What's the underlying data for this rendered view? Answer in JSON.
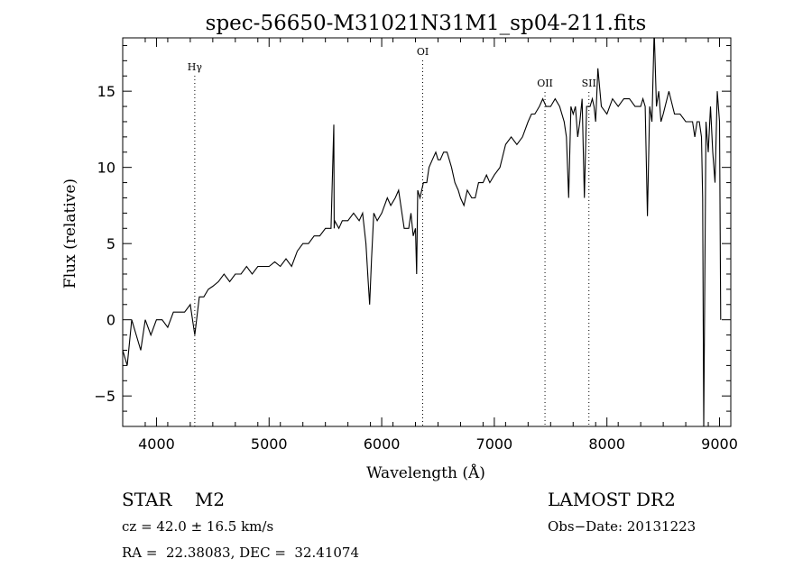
{
  "chart_data": {
    "type": "line",
    "title": "spec-56650-M31021N31M1_sp04-211.fits",
    "xlabel": "Wavelength (Å)",
    "ylabel": "Flux (relative)",
    "xlim": [
      3700,
      9100
    ],
    "ylim": [
      -7,
      18.5
    ],
    "xticks": [
      4000,
      5000,
      6000,
      7000,
      8000,
      9000
    ],
    "yticks": [
      -5,
      0,
      5,
      10,
      15
    ],
    "grid": false,
    "lines": [
      {
        "label": "Hγ",
        "x": 4340
      },
      {
        "label": "OI",
        "x": 6364
      },
      {
        "label": "OII",
        "x": 7450
      },
      {
        "label": "SII",
        "x": 7840
      }
    ],
    "series": [
      {
        "x": [
          3700,
          3740,
          3780,
          3820,
          3860,
          3900,
          3950,
          4000,
          4050,
          4100,
          4150,
          4200,
          4250,
          4300,
          4340,
          4380,
          4420,
          4460,
          4500,
          4550,
          4600,
          4650,
          4700,
          4750,
          4800,
          4850,
          4900,
          4950,
          5000,
          5050,
          5100,
          5150,
          5200,
          5250,
          5300,
          5350,
          5400,
          5450,
          5500,
          5550,
          5575,
          5578,
          5582,
          5620,
          5650,
          5700,
          5750,
          5800,
          5830,
          5860,
          5880,
          5893,
          5910,
          5930,
          5960,
          6000,
          6050,
          6080,
          6120,
          6150,
          6180,
          6200,
          6240,
          6260,
          6280,
          6300,
          6310,
          6320,
          6340,
          6370,
          6400,
          6420,
          6450,
          6480,
          6500,
          6520,
          6550,
          6580,
          6600,
          6620,
          6650,
          6680,
          6700,
          6730,
          6760,
          6800,
          6830,
          6860,
          6900,
          6930,
          6960,
          7000,
          7050,
          7100,
          7150,
          7200,
          7250,
          7300,
          7330,
          7360,
          7400,
          7430,
          7460,
          7500,
          7540,
          7580,
          7620,
          7640,
          7660,
          7680,
          7700,
          7720,
          7740,
          7760,
          7780,
          7800,
          7820,
          7850,
          7870,
          7885,
          7900,
          7920,
          7950,
          8000,
          8050,
          8100,
          8150,
          8200,
          8250,
          8300,
          8320,
          8340,
          8360,
          8380,
          8400,
          8420,
          8440,
          8460,
          8480,
          8500,
          8550,
          8600,
          8650,
          8700,
          8740,
          8760,
          8780,
          8800,
          8820,
          8840,
          8850,
          8860,
          8880,
          8900,
          8920,
          8940,
          8960,
          8980,
          9000,
          9010
        ],
        "y": [
          -2,
          -3,
          0,
          -1,
          -2,
          0,
          -1,
          0,
          0,
          -0.5,
          0.5,
          0.5,
          0.5,
          1,
          -1,
          1.5,
          1.5,
          2,
          2.2,
          2.5,
          3,
          2.5,
          3,
          3,
          3.5,
          3,
          3.5,
          3.5,
          3.5,
          3.8,
          3.5,
          4,
          3.5,
          4.5,
          5,
          5,
          5.5,
          5.5,
          6,
          6,
          12.8,
          6,
          6.5,
          6,
          6.5,
          6.5,
          7,
          6.5,
          7,
          5,
          2.5,
          1,
          4,
          7,
          6.5,
          7,
          8,
          7.5,
          8,
          8.5,
          7,
          6,
          6,
          7,
          5.5,
          6,
          3,
          8.5,
          8,
          9,
          9,
          10,
          10.5,
          11,
          10.5,
          10.5,
          11,
          11,
          10.5,
          10,
          9,
          8.5,
          8,
          7.5,
          8.5,
          8,
          8,
          9,
          9,
          9.5,
          9,
          9.5,
          10,
          11.5,
          12,
          11.5,
          12,
          13,
          13.5,
          13.5,
          14,
          14.5,
          14,
          14,
          14.5,
          14,
          13,
          12,
          8,
          14,
          13.5,
          14,
          12,
          13,
          14.5,
          8,
          14,
          14,
          14.5,
          14,
          13,
          16.5,
          14,
          13.5,
          14.5,
          14,
          14.5,
          14.5,
          14,
          14,
          14.5,
          14,
          6.8,
          14,
          13,
          19,
          14,
          15,
          13,
          13.5,
          15,
          13.5,
          13.5,
          13,
          13,
          13,
          12,
          13,
          13,
          12,
          8,
          -7,
          13,
          11,
          14,
          11,
          9,
          15,
          13,
          0
        ]
      }
    ]
  },
  "info": {
    "class_line": "STAR    M2",
    "survey": "LAMOST DR2",
    "cz": "cz = 42.0 ± 16.5 km/s",
    "obs_date": "Obs−Date: 20131223",
    "coords": "RA =  22.38083, DEC =  32.41074"
  }
}
